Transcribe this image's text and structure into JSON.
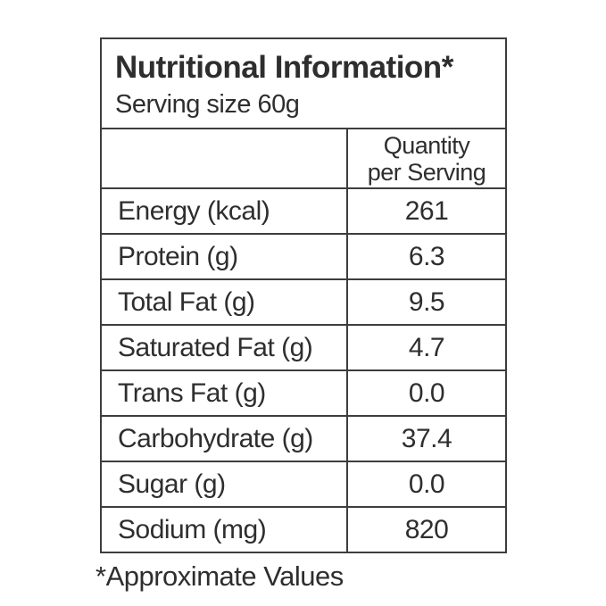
{
  "label": {
    "title": "Nutritional Information",
    "title_asterisk": "*",
    "serving_size": "Serving size 60g",
    "value_header_line1": "Quantity",
    "value_header_line2": "per Serving",
    "rows": [
      {
        "label": "Energy (kcal)",
        "value": "261"
      },
      {
        "label": "Protein (g)",
        "value": "6.3"
      },
      {
        "label": "Total Fat (g)",
        "value": "9.5"
      },
      {
        "label": "Saturated Fat (g)",
        "value": "4.7"
      },
      {
        "label": "Trans Fat (g)",
        "value": "0.0"
      },
      {
        "label": "Carbohydrate (g)",
        "value": "37.4"
      },
      {
        "label": "Sugar (g)",
        "value": "0.0"
      },
      {
        "label": "Sodium (mg)",
        "value": "820"
      }
    ],
    "footnote_marker": "*",
    "footnote_text": "Approximate Values"
  },
  "colors": {
    "text": "#2e2e2e",
    "border": "#3d3d3d",
    "background": "#ffffff"
  }
}
